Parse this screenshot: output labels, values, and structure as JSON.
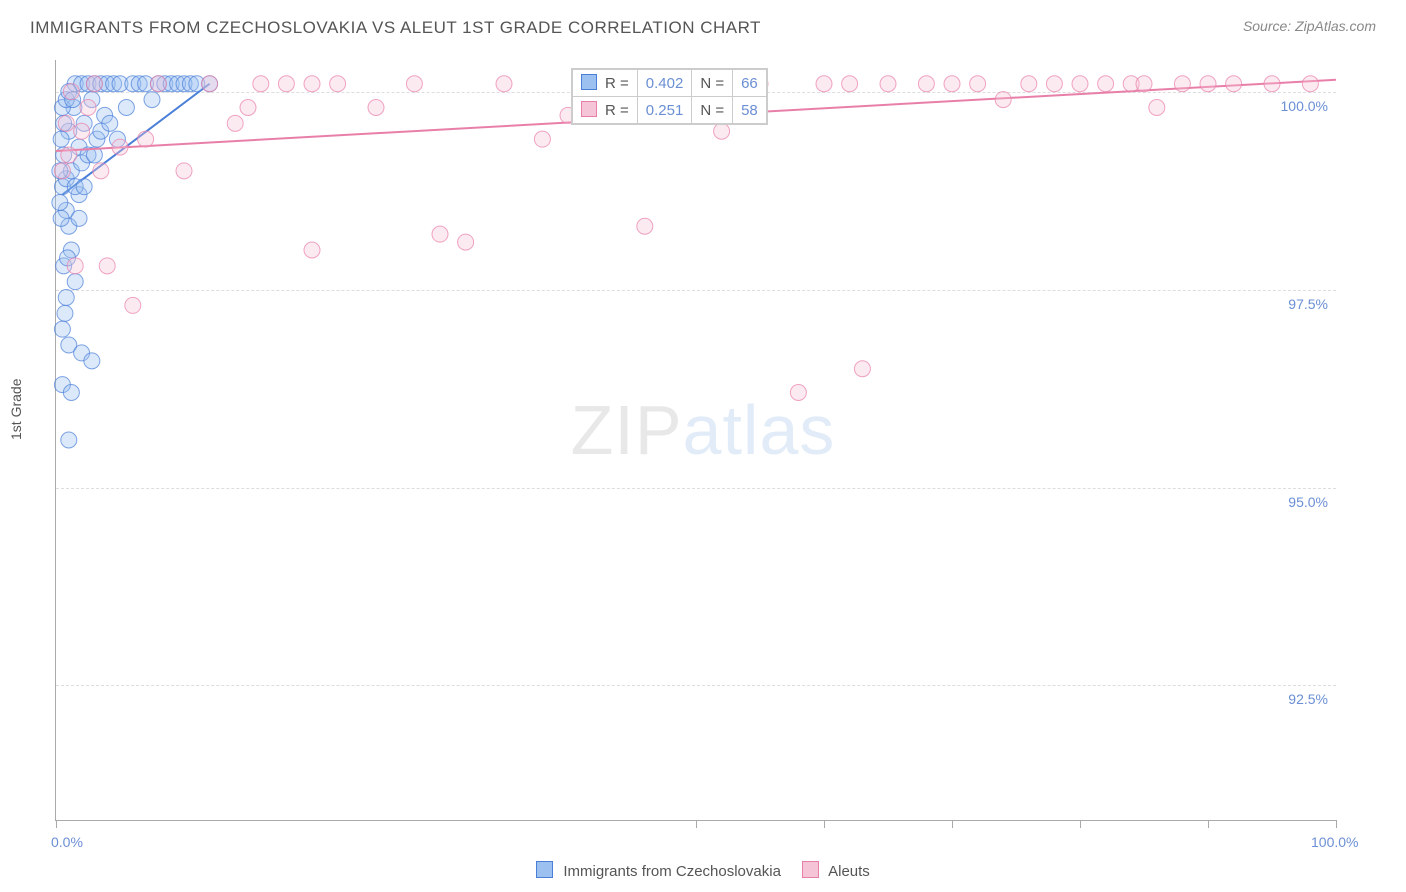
{
  "title": "IMMIGRANTS FROM CZECHOSLOVAKIA VS ALEUT 1ST GRADE CORRELATION CHART",
  "source_label": "Source:",
  "source_name": "ZipAtlas.com",
  "ylabel": "1st Grade",
  "watermark_a": "ZIP",
  "watermark_b": "atlas",
  "chart": {
    "type": "scatter",
    "x_range": [
      0,
      100
    ],
    "y_range": [
      90.8,
      100.4
    ],
    "x_unit": "%",
    "y_unit": "%",
    "grid_color": "#dddddd",
    "axis_color": "#aaaaaa",
    "tick_label_color": "#6b8fd4",
    "background_color": "#ffffff",
    "x_ticks": [
      0,
      50,
      60,
      70,
      80,
      90,
      100
    ],
    "x_tick_labels": {
      "0": "0.0%",
      "100": "100.0%"
    },
    "y_ticks": [
      92.5,
      95.0,
      97.5,
      100.0
    ],
    "y_tick_labels": [
      "92.5%",
      "95.0%",
      "97.5%",
      "100.0%"
    ],
    "marker_radius": 8,
    "marker_opacity": 0.35,
    "line_width": 2
  },
  "series": [
    {
      "name": "Immigrants from Czechoslovakia",
      "color_stroke": "#4a7fd8",
      "color_fill": "#9cc0f0",
      "R": "0.402",
      "N": "66",
      "trend": {
        "x1": 0.5,
        "y1": 98.7,
        "x2": 12,
        "y2": 100.1
      },
      "points": [
        [
          0.5,
          98.8
        ],
        [
          0.6,
          99.2
        ],
        [
          0.8,
          98.9
        ],
        [
          1.0,
          99.5
        ],
        [
          1.2,
          99.0
        ],
        [
          1.4,
          99.8
        ],
        [
          1.5,
          100.1
        ],
        [
          1.8,
          99.3
        ],
        [
          2.0,
          100.1
        ],
        [
          2.2,
          99.6
        ],
        [
          2.5,
          100.1
        ],
        [
          2.8,
          99.9
        ],
        [
          3.0,
          100.1
        ],
        [
          3.2,
          99.4
        ],
        [
          3.5,
          100.1
        ],
        [
          3.8,
          99.7
        ],
        [
          4.0,
          100.1
        ],
        [
          4.5,
          100.1
        ],
        [
          5.0,
          100.1
        ],
        [
          5.5,
          99.8
        ],
        [
          6.0,
          100.1
        ],
        [
          6.5,
          100.1
        ],
        [
          7.0,
          100.1
        ],
        [
          7.5,
          99.9
        ],
        [
          8.0,
          100.1
        ],
        [
          8.5,
          100.1
        ],
        [
          9.0,
          100.1
        ],
        [
          9.5,
          100.1
        ],
        [
          10.0,
          100.1
        ],
        [
          10.5,
          100.1
        ],
        [
          11.0,
          100.1
        ],
        [
          12.0,
          100.1
        ],
        [
          0.8,
          98.5
        ],
        [
          1.0,
          98.3
        ],
        [
          1.2,
          98.0
        ],
        [
          0.6,
          97.8
        ],
        [
          1.5,
          97.6
        ],
        [
          0.8,
          97.4
        ],
        [
          0.5,
          97.0
        ],
        [
          1.0,
          96.8
        ],
        [
          2.0,
          96.7
        ],
        [
          2.8,
          96.6
        ],
        [
          0.5,
          96.3
        ],
        [
          1.2,
          96.2
        ],
        [
          1.0,
          95.6
        ],
        [
          2.0,
          99.1
        ],
        [
          1.8,
          98.7
        ],
        [
          2.5,
          99.2
        ],
        [
          0.4,
          99.4
        ],
        [
          0.3,
          99.0
        ],
        [
          0.3,
          98.6
        ],
        [
          0.4,
          98.4
        ],
        [
          0.6,
          99.6
        ],
        [
          0.5,
          99.8
        ],
        [
          0.8,
          99.9
        ],
        [
          1.0,
          100.0
        ],
        [
          1.5,
          98.8
        ],
        [
          1.8,
          98.4
        ],
        [
          3.0,
          99.2
        ],
        [
          3.5,
          99.5
        ],
        [
          4.2,
          99.6
        ],
        [
          4.8,
          99.4
        ],
        [
          2.2,
          98.8
        ],
        [
          0.7,
          97.2
        ],
        [
          0.9,
          97.9
        ],
        [
          1.3,
          99.9
        ]
      ]
    },
    {
      "name": "Aleuts",
      "color_stroke": "#e87fa8",
      "color_fill": "#f5c4d6",
      "R": "0.251",
      "N": "58",
      "trend": {
        "x1": 0,
        "y1": 99.25,
        "x2": 100,
        "y2": 100.15
      },
      "points": [
        [
          0.5,
          99.0
        ],
        [
          1.0,
          99.2
        ],
        [
          2.0,
          99.5
        ],
        [
          3.0,
          100.1
        ],
        [
          5.0,
          99.3
        ],
        [
          8.0,
          100.1
        ],
        [
          12.0,
          100.1
        ],
        [
          15.0,
          99.8
        ],
        [
          18.0,
          100.1
        ],
        [
          20.0,
          100.1
        ],
        [
          22.0,
          100.1
        ],
        [
          28.0,
          100.1
        ],
        [
          35.0,
          100.1
        ],
        [
          38.0,
          99.4
        ],
        [
          45.0,
          100.1
        ],
        [
          48.0,
          100.1
        ],
        [
          55.0,
          100.1
        ],
        [
          60.0,
          100.1
        ],
        [
          62.0,
          100.1
        ],
        [
          65.0,
          100.1
        ],
        [
          68.0,
          100.1
        ],
        [
          70.0,
          100.1
        ],
        [
          72.0,
          100.1
        ],
        [
          74.0,
          99.9
        ],
        [
          76.0,
          100.1
        ],
        [
          78.0,
          100.1
        ],
        [
          80.0,
          100.1
        ],
        [
          82.0,
          100.1
        ],
        [
          84.0,
          100.1
        ],
        [
          85.0,
          100.1
        ],
        [
          88.0,
          100.1
        ],
        [
          90.0,
          100.1
        ],
        [
          92.0,
          100.1
        ],
        [
          98.0,
          100.1
        ],
        [
          4.0,
          97.8
        ],
        [
          6.0,
          97.3
        ],
        [
          20.0,
          98.0
        ],
        [
          30.0,
          98.2
        ],
        [
          32.0,
          98.1
        ],
        [
          46.0,
          98.3
        ],
        [
          58.0,
          96.2
        ],
        [
          63.0,
          96.5
        ],
        [
          10.0,
          99.0
        ],
        [
          14.0,
          99.6
        ],
        [
          25.0,
          99.8
        ],
        [
          40.0,
          99.7
        ],
        [
          50.0,
          100.0
        ],
        [
          52.0,
          99.5
        ],
        [
          3.5,
          99.0
        ],
        [
          1.5,
          97.8
        ],
        [
          0.8,
          99.6
        ],
        [
          1.2,
          100.0
        ],
        [
          2.5,
          99.8
        ],
        [
          7.0,
          99.4
        ],
        [
          16.0,
          100.1
        ],
        [
          42.0,
          100.0
        ],
        [
          86.0,
          99.8
        ],
        [
          95.0,
          100.1
        ]
      ]
    }
  ],
  "legend_box": {
    "R_label": "R =",
    "N_label": "N ="
  },
  "legend_bottom": {
    "series1_label": "Immigrants from Czechoslovakia",
    "series2_label": "Aleuts"
  }
}
